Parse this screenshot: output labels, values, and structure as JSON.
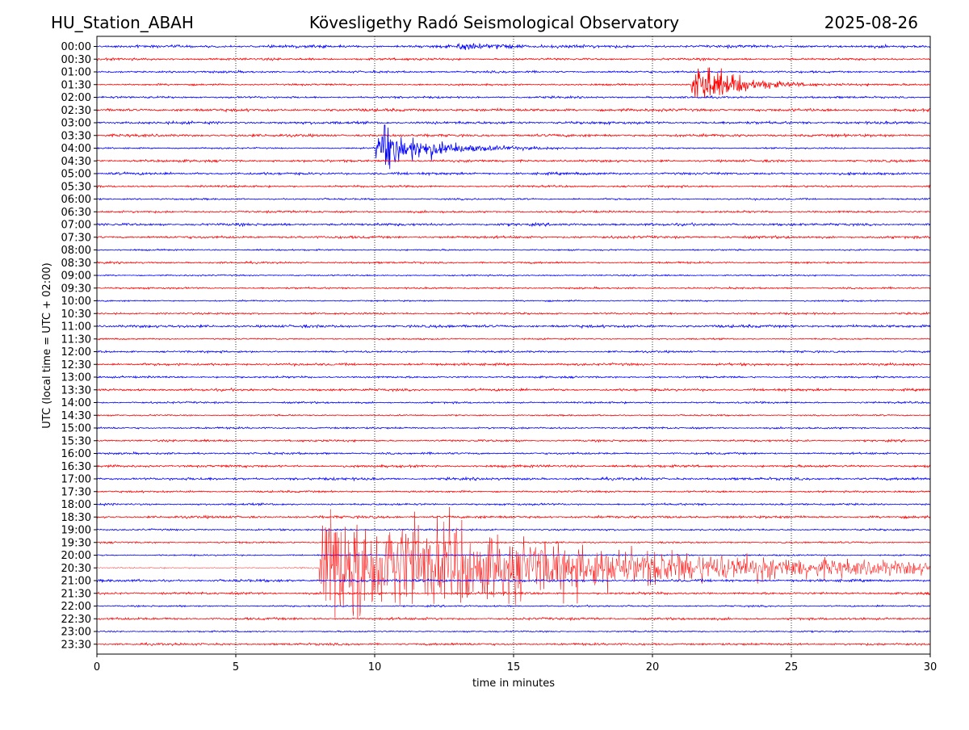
{
  "header": {
    "station": "HU_Station_ABAH",
    "observatory": "Kövesligethy Radó Seismological Observatory",
    "date": "2025-08-26"
  },
  "chart_data": {
    "type": "line",
    "title": "Kövesligethy Radó Seismological Observatory",
    "xlabel": "time in minutes",
    "ylabel": "UTC (local time = UTC + 02:00)",
    "xlim": [
      0,
      30
    ],
    "x_ticks": [
      0,
      5,
      10,
      15,
      20,
      25,
      30
    ],
    "y_ticks": [
      "00:00",
      "00:30",
      "01:00",
      "01:30",
      "02:00",
      "02:30",
      "03:00",
      "03:30",
      "04:00",
      "04:30",
      "05:00",
      "05:30",
      "06:00",
      "06:30",
      "07:00",
      "07:30",
      "08:00",
      "08:30",
      "09:00",
      "09:30",
      "10:00",
      "10:30",
      "11:00",
      "11:30",
      "12:00",
      "12:30",
      "13:00",
      "13:30",
      "14:00",
      "14:30",
      "15:00",
      "15:30",
      "16:00",
      "16:30",
      "17:00",
      "17:30",
      "18:00",
      "18:30",
      "19:00",
      "19:30",
      "20:00",
      "20:30",
      "21:00",
      "21:30",
      "22:00",
      "22:30",
      "23:00",
      "23:30"
    ],
    "grid": "vertical dotted lines at major x ticks",
    "trace_colors": [
      "#0000ff",
      "#ff0000"
    ],
    "events": [
      {
        "row": "00:00",
        "start_min": 13.0,
        "peak_rows": 0.3,
        "decay_min": 1.5
      },
      {
        "row": "01:30",
        "start_min": 21.4,
        "peak_rows": 2.1,
        "decay_min": 1.3
      },
      {
        "row": "04:00",
        "start_min": 10.05,
        "peak_rows": 2.0,
        "decay_min": 1.6
      },
      {
        "row": "20:30",
        "start_min": 8.0,
        "peak_rows": 4.8,
        "decay_min": 9.0
      }
    ]
  }
}
